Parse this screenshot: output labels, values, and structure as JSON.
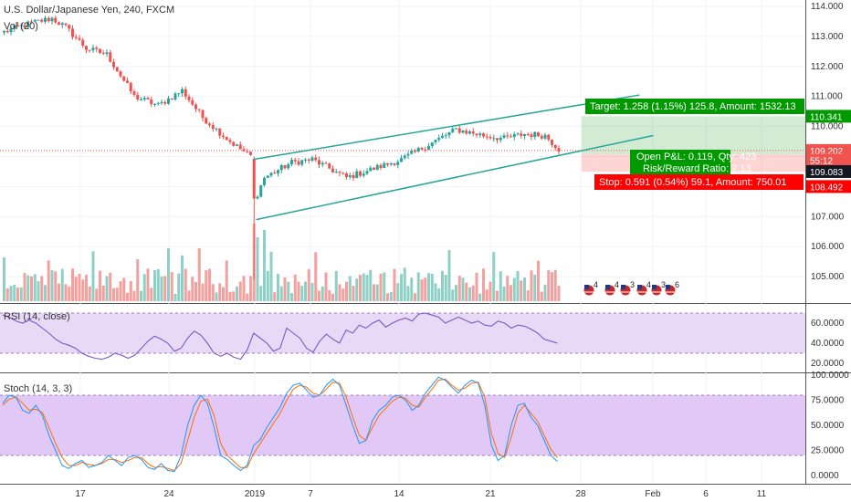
{
  "header": {
    "symbol_title": "U.S. Dollar/Japanese Yen, 240, FXCM",
    "volume_label": "Vol (20)"
  },
  "colors": {
    "up": "#26a69a",
    "down": "#ef5350",
    "channel": "#26a69a",
    "target_box": "#009900",
    "stop_box": "#ff0000",
    "rsi_fill": "#e8d9f7",
    "rsi_line": "#7e57c2",
    "stoch_fill": "#e2c8f7",
    "k_line": "#2196f3",
    "d_line": "#ff6d00"
  },
  "chart_data": [
    {
      "type": "candlestick",
      "title": "U.S. Dollar/Japanese Yen, 240, FXCM",
      "ylim": [
        104.2,
        114.2
      ],
      "y_ticks": [
        "114.000",
        "113.000",
        "112.000",
        "111.000",
        "110.000",
        "109.000",
        "108.000",
        "107.000",
        "106.000",
        "105.000"
      ],
      "x_ticks": [
        "17",
        "24",
        "2019",
        "7",
        "14",
        "21",
        "28",
        "Feb",
        "6",
        "11"
      ],
      "anchors": [
        {
          "bar": 0,
          "price": 113.15
        },
        {
          "bar": 8,
          "price": 113.45
        },
        {
          "bar": 14,
          "price": 113.6
        },
        {
          "bar": 18,
          "price": 113.3
        },
        {
          "bar": 24,
          "price": 112.6
        },
        {
          "bar": 30,
          "price": 112.4
        },
        {
          "bar": 38,
          "price": 111.0
        },
        {
          "bar": 45,
          "price": 110.7
        },
        {
          "bar": 52,
          "price": 111.2
        },
        {
          "bar": 58,
          "price": 110.3
        },
        {
          "bar": 66,
          "price": 109.5
        },
        {
          "bar": 72,
          "price": 109.0
        },
        {
          "bar": 73,
          "price": 107.5
        },
        {
          "bar": 76,
          "price": 108.3
        },
        {
          "bar": 84,
          "price": 108.8
        },
        {
          "bar": 90,
          "price": 108.9
        },
        {
          "bar": 100,
          "price": 108.3
        },
        {
          "bar": 108,
          "price": 108.6
        },
        {
          "bar": 116,
          "price": 108.9
        },
        {
          "bar": 124,
          "price": 109.4
        },
        {
          "bar": 132,
          "price": 109.9
        },
        {
          "bar": 140,
          "price": 109.7
        },
        {
          "bar": 146,
          "price": 109.6
        },
        {
          "bar": 152,
          "price": 109.75
        },
        {
          "bar": 158,
          "price": 109.7
        },
        {
          "bar": 162,
          "price": 109.25
        }
      ],
      "channel": {
        "upper": [
          {
            "bar": 73,
            "price": 108.9
          },
          {
            "bar": 186,
            "price": 111.05
          }
        ],
        "lower": [
          {
            "bar": 74,
            "price": 106.9
          },
          {
            "bar": 190,
            "price": 109.7
          }
        ]
      },
      "position": {
        "entry": 109.083,
        "target": 110.341,
        "stop": 108.492,
        "target_label": "Target: 1.258 (1.15%) 125.8, Amount: 1532.13",
        "stop_label": "Stop: 0.591 (0.54%) 59.1, Amount: 750.01",
        "open_pnl_label": "Open P&L: 0.119, Qty: 423",
        "risk_reward_label": "Risk/Reward Ratio: 2.13"
      },
      "price_tags": [
        {
          "label": "110.341",
          "price": 110.341,
          "color": "#009900"
        },
        {
          "label": "109.202",
          "price": 109.202,
          "color": "#ef5350"
        },
        {
          "label": "55:12",
          "price": 108.88,
          "color": "#ef5350"
        },
        {
          "label": "109.083",
          "price": 108.5,
          "color": "#131722"
        },
        {
          "label": "108.492",
          "price": 108.0,
          "color": "#ff0000"
        }
      ],
      "events": [
        "4",
        "4",
        "3",
        "4",
        "3",
        "6"
      ]
    },
    {
      "type": "line",
      "title": "RSI (14, close)",
      "ylim": [
        17,
        72
      ],
      "y_ticks": [
        "60.0000",
        "40.0000",
        "20.0000"
      ],
      "band": [
        30,
        70
      ],
      "values": [
        68,
        66,
        62,
        60,
        63,
        60,
        55,
        50,
        44,
        40,
        38,
        35,
        30,
        27,
        25,
        24,
        26,
        30,
        28,
        25,
        28,
        35,
        42,
        47,
        44,
        40,
        32,
        35,
        45,
        52,
        48,
        40,
        30,
        27,
        30,
        26,
        24,
        33,
        50,
        45,
        40,
        32,
        35,
        55,
        50,
        45,
        35,
        31,
        42,
        49,
        44,
        40,
        53,
        50,
        58,
        55,
        60,
        63,
        56,
        60,
        63,
        65,
        62,
        69,
        70,
        68,
        66,
        60,
        63,
        66,
        63,
        60,
        62,
        58,
        57,
        62,
        60,
        55,
        58,
        57,
        54,
        50,
        44,
        42,
        40
      ]
    },
    {
      "type": "line",
      "title": "Stoch (14, 3, 3)",
      "ylim": [
        -4,
        103
      ],
      "y_ticks": [
        "100.0000",
        "75.0000",
        "50.0000",
        "25.0000",
        "0.0000"
      ],
      "band": [
        20,
        80
      ],
      "k_values": [
        72,
        80,
        78,
        65,
        62,
        70,
        60,
        40,
        25,
        10,
        7,
        12,
        15,
        8,
        10,
        13,
        20,
        15,
        10,
        18,
        20,
        16,
        8,
        6,
        12,
        5,
        4,
        20,
        50,
        70,
        80,
        72,
        48,
        20,
        16,
        10,
        5,
        10,
        30,
        36,
        48,
        58,
        68,
        82,
        90,
        92,
        85,
        78,
        80,
        90,
        96,
        90,
        70,
        50,
        32,
        35,
        55,
        65,
        70,
        78,
        80,
        75,
        65,
        70,
        82,
        90,
        98,
        95,
        88,
        82,
        90,
        95,
        92,
        70,
        30,
        15,
        20,
        50,
        70,
        72,
        58,
        50,
        35,
        20,
        14
      ],
      "d_values": [
        70,
        76,
        78,
        72,
        65,
        66,
        63,
        48,
        32,
        18,
        10,
        10,
        13,
        11,
        10,
        12,
        16,
        16,
        13,
        15,
        18,
        18,
        12,
        8,
        9,
        7,
        5,
        12,
        35,
        58,
        74,
        76,
        60,
        32,
        20,
        14,
        8,
        8,
        22,
        32,
        42,
        52,
        62,
        75,
        86,
        90,
        88,
        82,
        80,
        86,
        93,
        92,
        78,
        58,
        40,
        35,
        48,
        60,
        67,
        74,
        78,
        77,
        70,
        68,
        78,
        86,
        95,
        96,
        90,
        85,
        87,
        92,
        93,
        78,
        42,
        22,
        18,
        38,
        62,
        70,
        62,
        54,
        40,
        26,
        18
      ]
    }
  ]
}
